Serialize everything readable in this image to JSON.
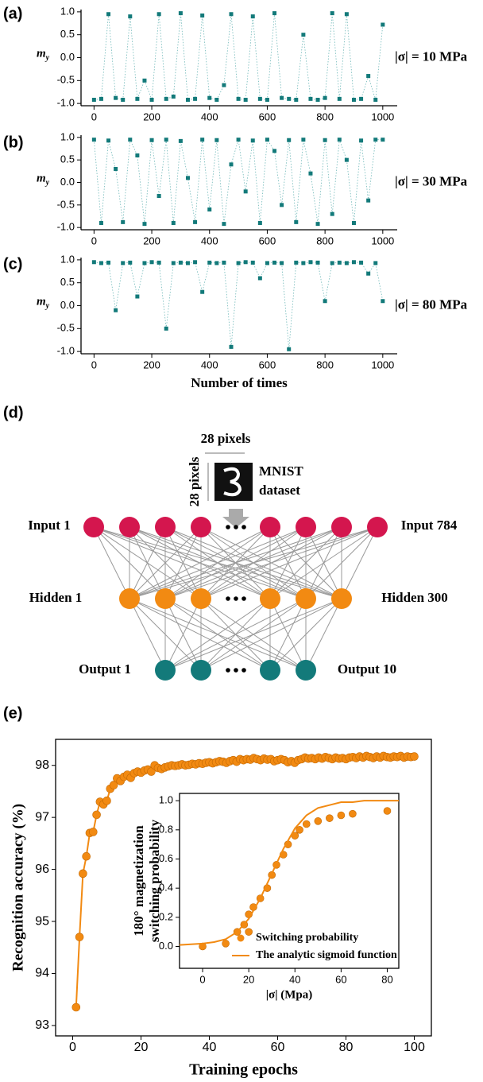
{
  "chart_data": [
    {
      "type": "scatter",
      "panel_label": "(a)",
      "ylabel": {
        "base": "m",
        "sub": "y"
      },
      "annotation": "|σ| = 10 MPa",
      "color": "#137a7a",
      "x": [
        0,
        25,
        50,
        75,
        100,
        125,
        150,
        175,
        200,
        225,
        250,
        275,
        300,
        325,
        350,
        375,
        400,
        425,
        450,
        475,
        500,
        525,
        550,
        575,
        600,
        625,
        650,
        675,
        700,
        725,
        750,
        775,
        800,
        825,
        850,
        875,
        900,
        925,
        950,
        975,
        1000
      ],
      "values": [
        -0.92,
        -0.9,
        0.95,
        -0.88,
        -0.92,
        0.9,
        -0.9,
        -0.5,
        -0.92,
        0.95,
        -0.9,
        -0.85,
        0.97,
        -0.92,
        -0.9,
        0.92,
        -0.88,
        -0.92,
        -0.6,
        0.95,
        -0.9,
        -0.92,
        0.9,
        -0.9,
        -0.92,
        0.97,
        -0.88,
        -0.9,
        -0.92,
        0.5,
        -0.9,
        -0.92,
        -0.88,
        0.97,
        -0.9,
        0.95,
        -0.92,
        -0.9,
        -0.4,
        -0.92,
        0.72
      ],
      "xlim": [
        -45,
        1050
      ],
      "ylim": [
        -1.05,
        1.05
      ],
      "xticks": [
        0,
        200,
        400,
        600,
        800,
        1000
      ],
      "yticks": [
        {
          "value": 1,
          "label": "1.0"
        },
        0.5,
        {
          "value": 0,
          "label": "0.0"
        },
        -0.5,
        {
          "value": -1,
          "label": "-1.0"
        }
      ]
    },
    {
      "type": "scatter",
      "panel_label": "(b)",
      "ylabel": {
        "base": "m",
        "sub": "y"
      },
      "annotation": "|σ| = 30 MPa",
      "color": "#137a7a",
      "x": [
        0,
        25,
        50,
        75,
        100,
        125,
        150,
        175,
        200,
        225,
        250,
        275,
        300,
        325,
        350,
        375,
        400,
        425,
        450,
        475,
        500,
        525,
        550,
        575,
        600,
        625,
        650,
        675,
        700,
        725,
        750,
        775,
        800,
        825,
        850,
        875,
        900,
        925,
        950,
        975,
        1000
      ],
      "values": [
        0.95,
        -0.9,
        0.93,
        0.3,
        -0.88,
        0.95,
        0.6,
        -0.92,
        0.94,
        -0.3,
        0.95,
        -0.9,
        0.92,
        0.1,
        -0.88,
        0.95,
        -0.6,
        0.94,
        -0.92,
        0.4,
        0.95,
        -0.2,
        0.93,
        -0.9,
        0.95,
        0.7,
        -0.5,
        0.94,
        -0.88,
        0.95,
        0.2,
        -0.92,
        0.94,
        -0.7,
        0.95,
        0.5,
        -0.9,
        0.93,
        -0.4,
        0.95,
        0.95
      ],
      "xlim": [
        -45,
        1050
      ],
      "ylim": [
        -1.05,
        1.05
      ],
      "xticks": [
        0,
        200,
        400,
        600,
        800,
        1000
      ],
      "yticks": [
        {
          "value": 1,
          "label": "1.0"
        },
        0.5,
        {
          "value": 0,
          "label": "0.0"
        },
        -0.5,
        {
          "value": -1,
          "label": "-1.0"
        }
      ]
    },
    {
      "type": "scatter",
      "panel_label": "(c)",
      "ylabel": {
        "base": "m",
        "sub": "y"
      },
      "annotation": "|σ| = 80 MPa",
      "xlabel": "Number of times",
      "color": "#137a7a",
      "x": [
        0,
        25,
        50,
        75,
        100,
        125,
        150,
        175,
        200,
        225,
        250,
        275,
        300,
        325,
        350,
        375,
        400,
        425,
        450,
        475,
        500,
        525,
        550,
        575,
        600,
        625,
        650,
        675,
        700,
        725,
        750,
        775,
        800,
        825,
        850,
        875,
        900,
        925,
        950,
        975,
        1000
      ],
      "values": [
        0.95,
        0.93,
        0.94,
        -0.1,
        0.93,
        0.94,
        0.2,
        0.93,
        0.95,
        0.94,
        -0.5,
        0.93,
        0.94,
        0.93,
        0.95,
        0.3,
        0.94,
        0.93,
        0.94,
        -0.9,
        0.93,
        0.95,
        0.94,
        0.6,
        0.93,
        0.94,
        0.93,
        -0.95,
        0.94,
        0.93,
        0.95,
        0.94,
        0.1,
        0.93,
        0.94,
        0.93,
        0.95,
        0.94,
        0.7,
        0.93,
        0.1
      ],
      "xlim": [
        -45,
        1050
      ],
      "ylim": [
        -1.05,
        1.05
      ],
      "xticks": [
        0,
        200,
        400,
        600,
        800,
        1000
      ],
      "yticks": [
        {
          "value": 1,
          "label": "1.0"
        },
        0.5,
        {
          "value": 0,
          "label": "0.0"
        },
        -0.5,
        {
          "value": -1,
          "label": "-1.0"
        }
      ]
    },
    {
      "type": "line",
      "panel_label": "(e)",
      "xlabel": "Training epochs",
      "ylabel": "Recognition accuracy (%)",
      "color": "#f28a12",
      "x": [
        1,
        2,
        3,
        4,
        5,
        6,
        7,
        8,
        9,
        10,
        11,
        12,
        13,
        14,
        15,
        16,
        17,
        18,
        19,
        20,
        21,
        22,
        23,
        24,
        25,
        26,
        27,
        28,
        29,
        30,
        31,
        32,
        33,
        34,
        35,
        36,
        37,
        38,
        39,
        40,
        41,
        42,
        43,
        44,
        45,
        46,
        47,
        48,
        49,
        50,
        51,
        52,
        53,
        54,
        55,
        56,
        57,
        58,
        59,
        60,
        61,
        62,
        63,
        64,
        65,
        66,
        67,
        68,
        69,
        70,
        71,
        72,
        73,
        74,
        75,
        76,
        77,
        78,
        79,
        80,
        81,
        82,
        83,
        84,
        85,
        86,
        87,
        88,
        89,
        90,
        91,
        92,
        93,
        94,
        95,
        96,
        97,
        98,
        99,
        100
      ],
      "values": [
        93.35,
        94.7,
        95.92,
        96.25,
        96.7,
        96.72,
        97.05,
        97.3,
        97.25,
        97.32,
        97.55,
        97.62,
        97.75,
        97.7,
        97.78,
        97.82,
        97.76,
        97.85,
        97.88,
        97.86,
        97.9,
        97.92,
        97.88,
        98.0,
        97.95,
        97.93,
        97.96,
        97.98,
        98.0,
        97.99,
        98.0,
        98.02,
        98.0,
        98.01,
        98.03,
        98.02,
        98.04,
        98.03,
        98.05,
        98.06,
        98.04,
        98.06,
        98.08,
        98.07,
        98.05,
        98.08,
        98.1,
        98.07,
        98.12,
        98.1,
        98.12,
        98.11,
        98.14,
        98.12,
        98.1,
        98.13,
        98.11,
        98.12,
        98.08,
        98.1,
        98.12,
        98.1,
        98.06,
        98.08,
        98.05,
        98.1,
        98.12,
        98.15,
        98.13,
        98.14,
        98.12,
        98.15,
        98.13,
        98.16,
        98.14,
        98.12,
        98.15,
        98.13,
        98.14,
        98.12,
        98.15,
        98.16,
        98.14,
        98.17,
        98.15,
        98.18,
        98.16,
        98.14,
        98.17,
        98.15,
        98.18,
        98.16,
        98.15,
        98.17,
        98.16,
        98.18,
        98.15,
        98.17,
        98.16,
        98.17
      ],
      "xlim": [
        -5,
        105
      ],
      "ylim": [
        92.8,
        98.5
      ],
      "xticks": [
        0,
        20,
        40,
        60,
        80,
        100
      ],
      "yticks": [
        93,
        94,
        95,
        96,
        97,
        98
      ]
    },
    {
      "type": "scatter",
      "xlabel": "|σ| (Mpa)",
      "ylabel": [
        "180° magnetization",
        "switching probability"
      ],
      "xlim": [
        -10,
        85
      ],
      "ylim": [
        -0.15,
        1.05
      ],
      "xticks": [
        0,
        20,
        40,
        60,
        80
      ],
      "yticks": [
        {
          "value": 0,
          "label": "0.0"
        },
        0.2,
        0.4,
        0.6,
        0.8,
        {
          "value": 1,
          "label": "1.0"
        }
      ],
      "series": [
        {
          "name": "Switching probability",
          "color": "#f28a12",
          "style": "markers",
          "x": [
            0,
            10,
            15,
            18,
            20,
            20,
            22,
            25,
            28,
            30,
            32,
            35,
            37,
            40,
            42,
            45,
            50,
            55,
            60,
            65,
            80
          ],
          "values": [
            0,
            0.02,
            0.1,
            0.15,
            0.1,
            0.22,
            0.27,
            0.33,
            0.4,
            0.49,
            0.56,
            0.63,
            0.7,
            0.76,
            0.8,
            0.84,
            0.86,
            0.88,
            0.9,
            0.91,
            0.93
          ]
        },
        {
          "name": "The analytic sigmoid function",
          "color": "#f28a12",
          "style": "line",
          "x": [
            -10,
            -5,
            0,
            5,
            10,
            15,
            20,
            25,
            30,
            35,
            40,
            45,
            50,
            55,
            60,
            65,
            70,
            75,
            80,
            85
          ],
          "values": [
            0.01,
            0.015,
            0.02,
            0.03,
            0.05,
            0.1,
            0.19,
            0.33,
            0.5,
            0.67,
            0.81,
            0.9,
            0.95,
            0.97,
            0.99,
            0.99,
            1,
            1,
            1,
            1
          ]
        }
      ]
    }
  ],
  "diagram": {
    "panel_label": "(d)",
    "image_width": "28 pixels",
    "image_height": "28 pixels",
    "dataset": [
      "MNIST",
      "dataset"
    ],
    "input_first": "Input 1",
    "input_last": "Input 784",
    "hidden_first": "Hidden 1",
    "hidden_last": "Hidden 300",
    "output_first": "Output 1",
    "output_last": "Output 10"
  }
}
